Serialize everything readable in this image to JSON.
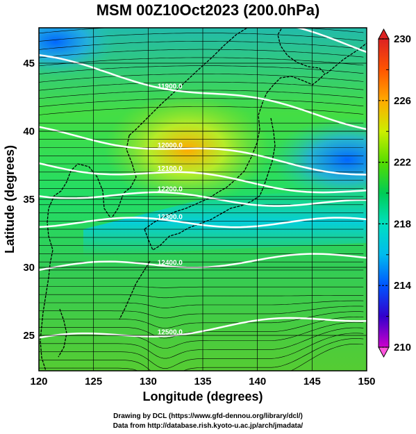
{
  "title": "MSM 00Z10Oct2023 (200.0hPa)",
  "credits": {
    "line1": "Drawing by DCL (https://www.gfd-dennou.org/library/dcl/)",
    "line2": "Data from http://database.rish.kyoto-u.ac.jp/arch/jmadata/"
  },
  "map": {
    "xlabel": "Longitude (degrees)",
    "ylabel": "Latitude  (degrees)",
    "lon_range": [
      120,
      150
    ],
    "lat_range": [
      22.4,
      47.6
    ],
    "lon_ticks": [
      "120",
      "125",
      "130",
      "135",
      "140",
      "145",
      "150"
    ],
    "lat_ticks": [
      "25",
      "30",
      "35",
      "40",
      "45"
    ],
    "grid": true,
    "field": "temperature (K)",
    "vector_field": "wind streamlines",
    "contour_color": "#ffffff",
    "contours": [
      {
        "label": "11900.0",
        "lat_at_120": 52.0,
        "slope": -0.2
      },
      {
        "label": "11900.0",
        "lat_at_120": 45.3,
        "slope": -0.16
      },
      {
        "label": "12000.0",
        "lat_at_120": 40.0,
        "slope": -0.1
      },
      {
        "label": "12100.0",
        "lat_at_120": 37.6,
        "slope": -0.07
      },
      {
        "label": "12200.0",
        "lat_at_120": 35.5,
        "slope": -0.03
      },
      {
        "label": "12300.0",
        "lat_at_120": 33.3,
        "slope": 0.0
      },
      {
        "label": "12400.0",
        "lat_at_120": 29.9,
        "slope": 0.03
      },
      {
        "label": "12500.0",
        "lat_at_120": 24.6,
        "slope": 0.06
      }
    ]
  },
  "colorbar": {
    "min": 210,
    "max": 230,
    "tick_labels": [
      "230",
      "226",
      "222",
      "218",
      "214",
      "210"
    ],
    "minor_ticks": [
      228,
      224,
      220,
      216,
      212
    ],
    "colors": [
      "#cc00cc",
      "#3300cc",
      "#0055ff",
      "#00bbee",
      "#00e0c0",
      "#00cc55",
      "#55dd00",
      "#ccee00",
      "#ffaa00",
      "#ff5500",
      "#dd2222"
    ]
  },
  "theme": {
    "streamline_color": "#000000",
    "coast_color": "#000000",
    "grid_color": "#000000"
  }
}
